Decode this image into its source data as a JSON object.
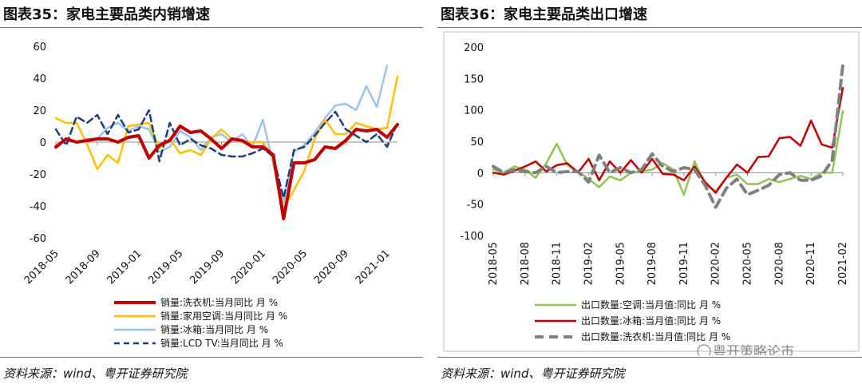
{
  "chart_data": [
    {
      "type": "line",
      "title": "图表35：家电主要品类内销增速",
      "source": "资料来源：wind、粤开证券研究院",
      "ylim": [
        -60,
        60
      ],
      "yticks": [
        -60,
        -40,
        -20,
        0,
        20,
        40,
        60
      ],
      "xtick_labels": [
        "2018-05",
        "2018-09",
        "2019-01",
        "2019-05",
        "2019-09",
        "2020-01",
        "2020-05",
        "2020-09",
        "2021-01"
      ],
      "xtick_idx": [
        0,
        4,
        8,
        12,
        16,
        20,
        24,
        28,
        32
      ],
      "series": [
        {
          "name": "销量:洗衣机:当月同比 月 %",
          "color": "#c00000",
          "dash": "solid",
          "width": 4,
          "values": [
            -3,
            2,
            0,
            1,
            2,
            2,
            0,
            3,
            4,
            -10,
            -2,
            1,
            10,
            6,
            7,
            2,
            -4,
            2,
            1,
            -3,
            -3,
            -8,
            -48,
            -13,
            -13,
            -11,
            -3,
            -4,
            1,
            8,
            7,
            8,
            3,
            11
          ]
        },
        {
          "name": "销量:家用空调:当月同比 月 %",
          "color": "#ffc000",
          "dash": "solid",
          "width": 2.5,
          "values": [
            15,
            12,
            12,
            -1,
            -17,
            -8,
            -13,
            10,
            11,
            12,
            -4,
            2,
            -7,
            -5,
            -8,
            2,
            8,
            2,
            0,
            0,
            0,
            -10,
            -42,
            -30,
            -18,
            2,
            14,
            5,
            5,
            12,
            10,
            8,
            9,
            41
          ]
        },
        {
          "name": "销量:冰箱:当月同比 月 %",
          "color": "#9dc3e6",
          "dash": "solid",
          "width": 2.5,
          "values": [
            -4,
            2,
            0,
            2,
            2,
            9,
            12,
            7,
            10,
            8,
            -6,
            -3,
            7,
            3,
            -5,
            3,
            5,
            0,
            5,
            -3,
            14,
            -14,
            -38,
            -6,
            -2,
            6,
            15,
            23,
            24,
            20,
            35,
            22,
            48
          ]
        },
        {
          "name": "销量:LCD TV:当月同比 月 %",
          "color": "#1f3d7a",
          "dash": "dash",
          "width": 2.5,
          "values": [
            8,
            -2,
            16,
            12,
            17,
            5,
            17,
            6,
            8,
            20,
            -12,
            12,
            -2,
            2,
            -2,
            -4,
            -8,
            -9,
            -9,
            -7,
            -4,
            -9,
            -35,
            -5,
            -3,
            4,
            12,
            19,
            8,
            4,
            0,
            5,
            -3,
            12
          ]
        }
      ]
    },
    {
      "type": "line",
      "title": "图表36：家电主要品类出口增速",
      "source": "资料来源：wind、粤开证券研究院",
      "ylim": [
        -100,
        200
      ],
      "yticks": [
        -100,
        -50,
        0,
        50,
        100,
        150,
        200
      ],
      "xtick_labels": [
        "2018-05",
        "2018-08",
        "2018-11",
        "2019-02",
        "2019-05",
        "2019-08",
        "2019-11",
        "2020-02",
        "2020-05",
        "2020-08",
        "2020-11",
        "2021-02"
      ],
      "xtick_idx": [
        0,
        3,
        6,
        9,
        12,
        15,
        18,
        21,
        24,
        27,
        30,
        33
      ],
      "series": [
        {
          "name": "出口数量:空调:当月值:同比 月 %",
          "color": "#92c353",
          "dash": "solid",
          "width": 2.5,
          "values": [
            5,
            0,
            10,
            5,
            -8,
            15,
            46,
            12,
            2,
            -10,
            -23,
            -6,
            -12,
            0,
            2,
            5,
            15,
            5,
            -35,
            18,
            -18,
            -30,
            -8,
            -3,
            -18,
            -18,
            -10,
            -15,
            -10,
            -5,
            -10,
            0,
            0,
            98
          ]
        },
        {
          "name": "出口数量:冰箱:当月值:同比 月 %",
          "color": "#c00000",
          "dash": "solid",
          "width": 2.5,
          "values": [
            0,
            -3,
            3,
            10,
            18,
            2,
            12,
            15,
            0,
            22,
            -12,
            18,
            0,
            20,
            0,
            22,
            -2,
            -3,
            -12,
            10,
            -15,
            -32,
            -8,
            13,
            0,
            25,
            26,
            55,
            57,
            43,
            83,
            45,
            40,
            135
          ]
        },
        {
          "name": "出口数量:洗衣机:当月值:同比 月 %",
          "color": "#808080",
          "dash": "dash",
          "width": 4,
          "values": [
            10,
            0,
            5,
            2,
            0,
            10,
            0,
            2,
            2,
            -15,
            28,
            0,
            8,
            0,
            5,
            30,
            10,
            2,
            8,
            5,
            -20,
            -55,
            -25,
            -10,
            -35,
            -28,
            -20,
            -3,
            0,
            -12,
            -12,
            -5,
            20,
            172
          ]
        }
      ]
    }
  ],
  "watermark": "粤开策略论市"
}
